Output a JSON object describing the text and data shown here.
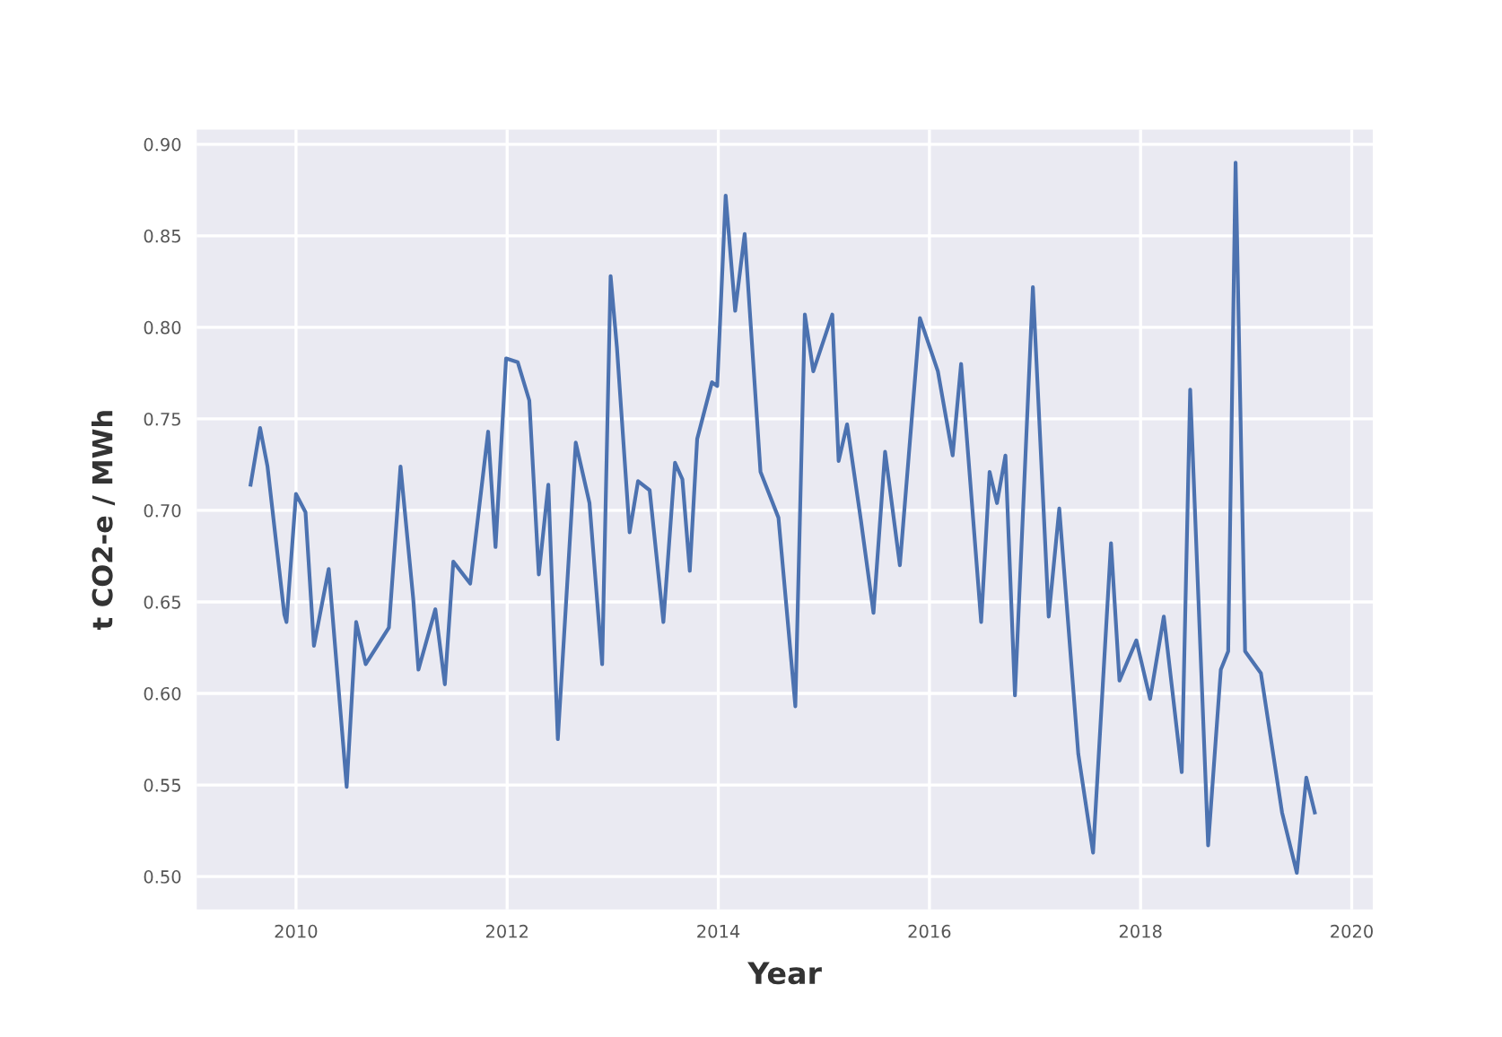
{
  "chart_data": {
    "type": "line",
    "xlabel": "Year",
    "ylabel": "t CO2-e / MWh",
    "x": [
      2009.57,
      2009.66,
      2009.73,
      2009.89,
      2009.91,
      2010.0,
      2010.09,
      2010.17,
      2010.31,
      2010.48,
      2010.57,
      2010.66,
      2010.88,
      2010.99,
      2011.11,
      2011.16,
      2011.32,
      2011.41,
      2011.49,
      2011.65,
      2011.82,
      2011.89,
      2011.99,
      2012.1,
      2012.21,
      2012.3,
      2012.39,
      2012.48,
      2012.65,
      2012.78,
      2012.9,
      2012.98,
      2013.04,
      2013.16,
      2013.24,
      2013.35,
      2013.48,
      2013.59,
      2013.66,
      2013.73,
      2013.8,
      2013.94,
      2013.99,
      2014.07,
      2014.16,
      2014.25,
      2014.4,
      2014.57,
      2014.73,
      2014.82,
      2014.9,
      2015.08,
      2015.14,
      2015.22,
      2015.35,
      2015.47,
      2015.58,
      2015.72,
      2015.91,
      2016.08,
      2016.22,
      2016.3,
      2016.49,
      2016.57,
      2016.64,
      2016.72,
      2016.81,
      2016.98,
      2017.13,
      2017.23,
      2017.41,
      2017.55,
      2017.72,
      2017.8,
      2017.96,
      2018.09,
      2018.22,
      2018.39,
      2018.47,
      2018.64,
      2018.76,
      2018.83,
      2018.9,
      2018.99,
      2019.14,
      2019.34,
      2019.48,
      2019.57,
      2019.65
    ],
    "series": [
      {
        "color": "#4c72b0",
        "values": [
          0.714,
          0.745,
          0.724,
          0.643,
          0.639,
          0.709,
          0.699,
          0.626,
          0.668,
          0.549,
          0.639,
          0.616,
          0.636,
          0.724,
          0.652,
          0.613,
          0.646,
          0.605,
          0.672,
          0.66,
          0.743,
          0.68,
          0.783,
          0.781,
          0.76,
          0.665,
          0.714,
          0.575,
          0.737,
          0.704,
          0.616,
          0.828,
          0.789,
          0.688,
          0.716,
          0.711,
          0.639,
          0.726,
          0.717,
          0.667,
          0.739,
          0.77,
          0.768,
          0.872,
          0.809,
          0.851,
          0.721,
          0.696,
          0.593,
          0.807,
          0.776,
          0.807,
          0.727,
          0.747,
          0.695,
          0.644,
          0.732,
          0.67,
          0.805,
          0.776,
          0.73,
          0.78,
          0.639,
          0.721,
          0.704,
          0.73,
          0.599,
          0.822,
          0.642,
          0.701,
          0.567,
          0.513,
          0.682,
          0.607,
          0.629,
          0.597,
          0.642,
          0.557,
          0.766,
          0.517,
          0.613,
          0.623,
          0.89,
          0.623,
          0.611,
          0.535,
          0.502,
          0.554,
          0.535
        ]
      }
    ],
    "xlim": [
      2009.06,
      2020.2
    ],
    "xticks": [
      2010,
      2012,
      2014,
      2016,
      2018,
      2020
    ],
    "ylim": [
      0.482,
      0.908
    ],
    "yticks": [
      {
        "value": 0.5,
        "label": "0.50"
      },
      {
        "value": 0.55,
        "label": "0.55"
      },
      {
        "value": 0.6,
        "label": "0.60"
      },
      {
        "value": 0.65,
        "label": "0.65"
      },
      {
        "value": 0.7,
        "label": "0.70"
      },
      {
        "value": 0.75,
        "label": "0.75"
      },
      {
        "value": 0.8,
        "label": "0.80"
      },
      {
        "value": 0.85,
        "label": "0.85"
      },
      {
        "value": 0.9,
        "label": "0.90"
      }
    ],
    "grid": true,
    "marker": "none",
    "line_style": "solid"
  }
}
